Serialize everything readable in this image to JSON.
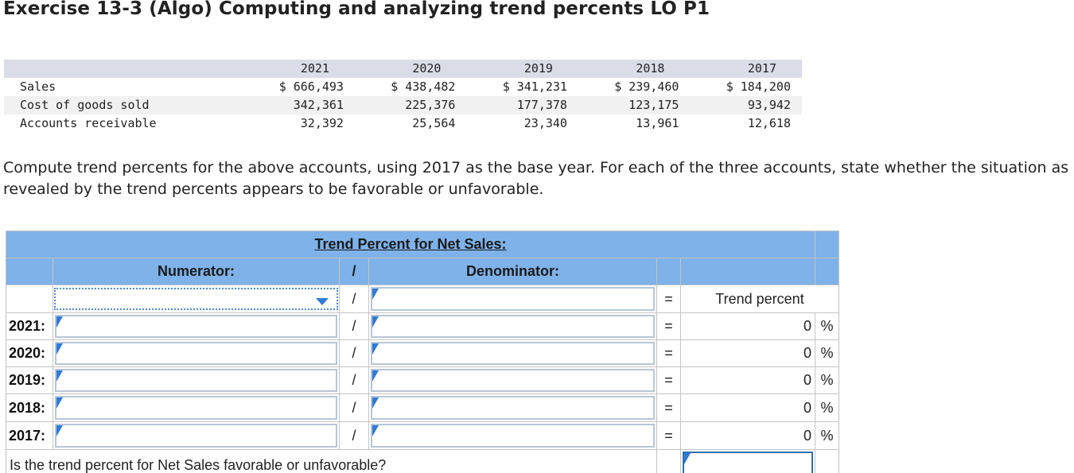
{
  "title": "Exercise 13-3 (Algo) Computing and analyzing trend percents LO P1",
  "financial_table": {
    "years": [
      "2021",
      "2020",
      "2019",
      "2018",
      "2017"
    ],
    "rows": [
      {
        "label": "Sales",
        "values": [
          "$ 666,493",
          "$ 438,482",
          "$ 341,231",
          "$ 239,460",
          "$ 184,200"
        ]
      },
      {
        "label": "Cost of goods sold",
        "values": [
          "342,361",
          "225,376",
          "177,378",
          "123,175",
          "93,942"
        ]
      },
      {
        "label": "Accounts receivable",
        "values": [
          "32,392",
          "25,564",
          "23,340",
          "13,961",
          "12,618"
        ]
      }
    ]
  },
  "instructions": "Compute trend percents for the above accounts, using 2017 as the base year. For each of the three accounts, state whether the situation as revealed by the trend percents appears to be favorable or unfavorable.",
  "worksheet": {
    "heading": "Trend Percent for Net Sales:",
    "numerator_label": "Numerator:",
    "slash": "/",
    "denominator_label": "Denominator:",
    "equals": "=",
    "trend_percent_label": "Trend percent",
    "rows": [
      {
        "year": "2021:",
        "percent": "0",
        "unit": "%"
      },
      {
        "year": "2020:",
        "percent": "0",
        "unit": "%"
      },
      {
        "year": "2019:",
        "percent": "0",
        "unit": "%"
      },
      {
        "year": "2018:",
        "percent": "0",
        "unit": "%"
      },
      {
        "year": "2017:",
        "percent": "0",
        "unit": "%"
      }
    ],
    "question": "Is the trend percent for Net Sales favorable or unfavorable?"
  }
}
